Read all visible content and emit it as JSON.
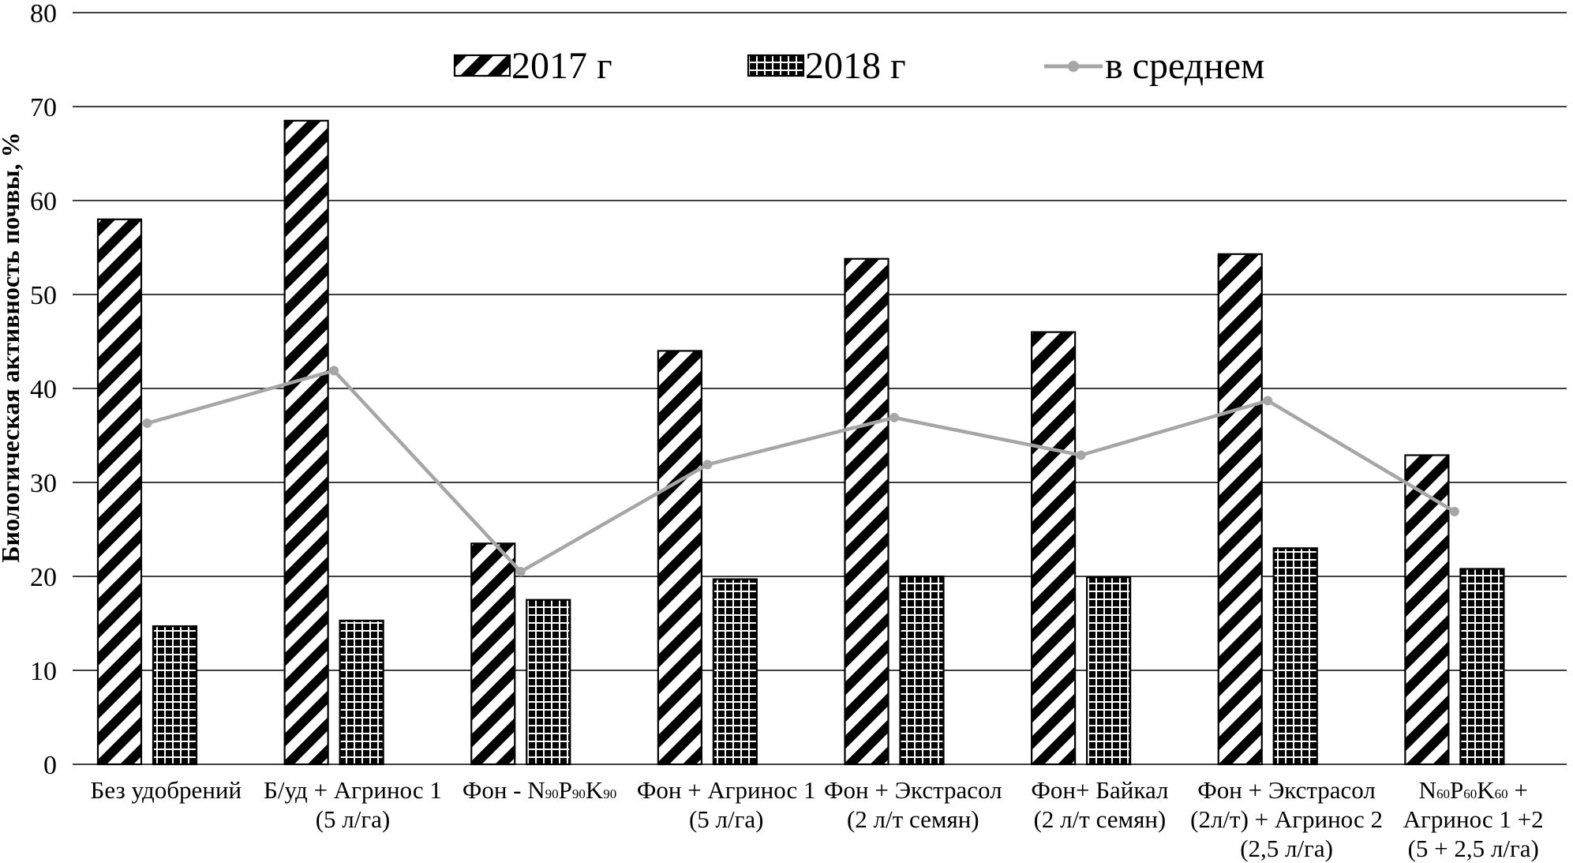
{
  "chart_data": {
    "type": "bar",
    "ylabel": "Биологическая активность почвы, %",
    "xlabel": "",
    "ylim": [
      0,
      80
    ],
    "yticks": [
      0,
      10,
      20,
      30,
      40,
      50,
      60,
      70,
      80
    ],
    "grid": true,
    "legend_position": "top",
    "categories": [
      {
        "lines": [
          "Без удобрений"
        ]
      },
      {
        "lines": [
          "Б/уд + Агринос 1",
          "(5 л/га)"
        ]
      },
      {
        "lines": [
          [
            [
              "Фон - N",
              "n"
            ],
            [
              "90",
              "s"
            ],
            [
              "P",
              "n"
            ],
            [
              "90",
              "s"
            ],
            [
              "K",
              "n"
            ],
            [
              "90",
              "s"
            ]
          ]
        ]
      },
      {
        "lines": [
          "Фон + Агринос 1",
          "(5 л/га)"
        ]
      },
      {
        "lines": [
          "Фон + Экстрасол",
          "(2 л/т семян)"
        ]
      },
      {
        "lines": [
          "Фон+ Байкал",
          "(2 л/т семян)"
        ]
      },
      {
        "lines": [
          "Фон + Экстрасол",
          "(2л/т) + Агринос 2",
          "(2,5 л/га)"
        ]
      },
      {
        "lines": [
          [
            [
              "N",
              "n"
            ],
            [
              "60",
              "s"
            ],
            [
              "P",
              "n"
            ],
            [
              "60",
              "s"
            ],
            [
              "K",
              "n"
            ],
            [
              "60",
              "s"
            ],
            [
              "  +",
              "n"
            ]
          ],
          "Агринос 1 +2",
          "(5 + 2,5 л/га)"
        ]
      }
    ],
    "series": [
      {
        "name": "2017 г",
        "kind": "bar",
        "pattern": "diagonal-hatch",
        "values": [
          58.0,
          68.5,
          23.5,
          44.0,
          53.8,
          46.0,
          54.3,
          32.9
        ]
      },
      {
        "name": "2018 г",
        "kind": "bar",
        "pattern": "checkered",
        "values": [
          14.7,
          15.3,
          17.5,
          19.7,
          20.0,
          19.9,
          23.0,
          20.8
        ]
      },
      {
        "name": "в среднем",
        "kind": "line",
        "color": "#a6a6a6",
        "values": [
          36.3,
          41.9,
          20.5,
          31.9,
          36.9,
          32.9,
          38.7,
          26.9
        ]
      }
    ]
  }
}
